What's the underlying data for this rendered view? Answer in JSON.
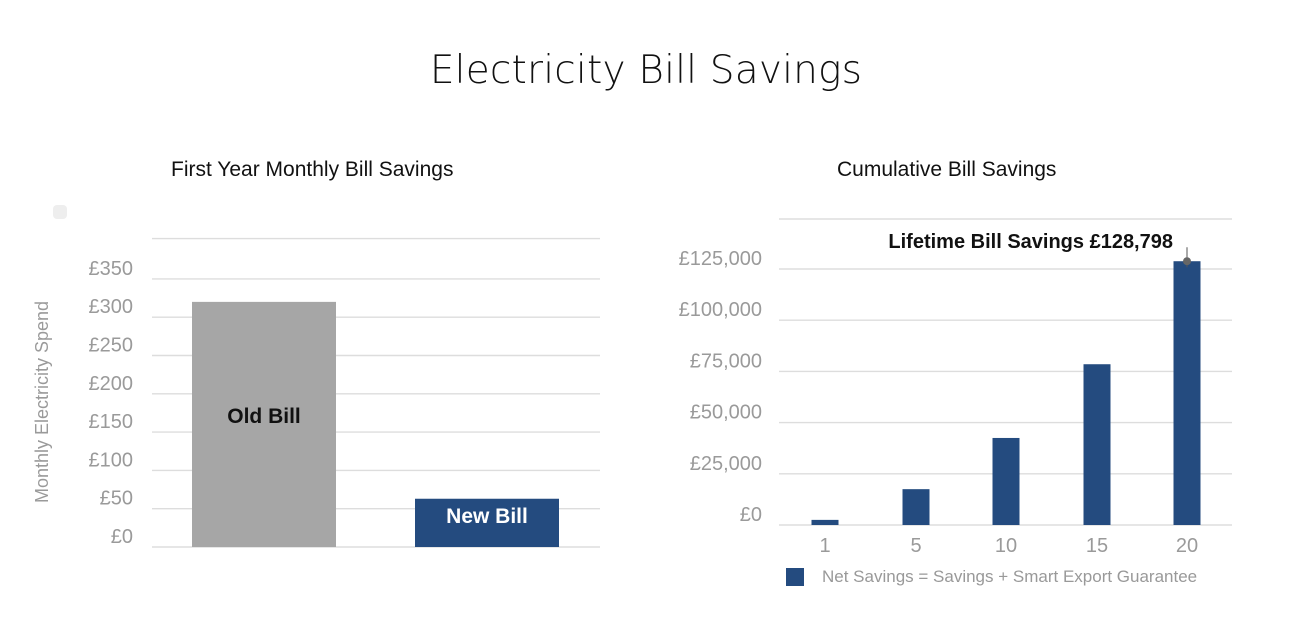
{
  "page": {
    "title": "Electricity Bill Savings"
  },
  "colors": {
    "grey_bar": "#a6a6a6",
    "navy_bar": "#244b7f",
    "grid": "#dddddd",
    "axis_text": "#9a9a9a"
  },
  "chart_data": [
    {
      "type": "bar",
      "title": "First Year Monthly Bill Savings",
      "ylabel": "Monthly Electricity Spend",
      "categories": [
        "Old Bill",
        "New Bill"
      ],
      "values": [
        320,
        63
      ],
      "bar_labels": [
        "Old Bill",
        "New Bill"
      ],
      "yticks": [
        0,
        50,
        100,
        150,
        200,
        250,
        300,
        350
      ],
      "ytick_labels": [
        "£0",
        "£50",
        "£100",
        "£150",
        "£200",
        "£250",
        "£300",
        "£350"
      ],
      "ylim": [
        0,
        400
      ],
      "grid": true
    },
    {
      "type": "bar",
      "title": "Cumulative Bill Savings",
      "categories": [
        "1",
        "5",
        "10",
        "15",
        "20"
      ],
      "series": [
        {
          "name": "Net Savings = Savings + Smart Export Guarantee",
          "values": [
            2500,
            17500,
            42500,
            78500,
            128798
          ]
        }
      ],
      "yticks": [
        0,
        25000,
        50000,
        75000,
        100000,
        125000
      ],
      "ytick_labels": [
        "£0",
        "£25,000",
        "£50,000",
        "£75,000",
        "£100,000",
        "£125,000"
      ],
      "ylim": [
        0,
        150000
      ],
      "annotation": "Lifetime Bill Savings £128,798",
      "legend_position": "bottom",
      "grid": true
    }
  ]
}
